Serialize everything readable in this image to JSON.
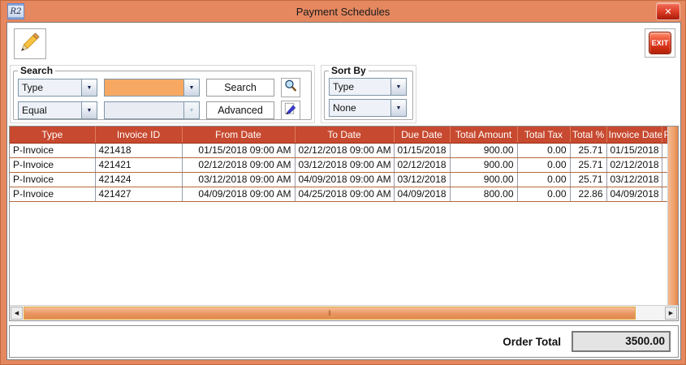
{
  "window": {
    "title": "Payment Schedules",
    "logo_text": "R2"
  },
  "icons": {
    "close": "✕",
    "combo_arrow": "▼",
    "scroll_left": "◀",
    "scroll_right": "▶",
    "thumb_grip": "‖"
  },
  "toolbar": {
    "exit_label": "EXIT"
  },
  "search_panel": {
    "legend": "Search",
    "field_combo_value": "Type",
    "search_value": "",
    "operator_combo_value": "Equal",
    "operator_value": "",
    "search_button_label": "Search",
    "advanced_button_label": "Advanced"
  },
  "sort_panel": {
    "legend": "Sort By",
    "primary_value": "Type",
    "secondary_value": "None"
  },
  "table": {
    "columns": [
      "Type",
      "Invoice ID",
      "From Date",
      "To Date",
      "Due Date",
      "Total Amount",
      "Total Tax",
      "Total %",
      "Invoice Date",
      "Pe"
    ],
    "rows": [
      [
        "P-Invoice",
        "421418",
        "01/15/2018 09:00 AM",
        "02/12/2018 09:00 AM",
        "01/15/2018",
        "900.00",
        "0.00",
        "25.71",
        "01/15/2018",
        ""
      ],
      [
        "P-Invoice",
        "421421",
        "02/12/2018 09:00 AM",
        "03/12/2018 09:00 AM",
        "02/12/2018",
        "900.00",
        "0.00",
        "25.71",
        "02/12/2018",
        ""
      ],
      [
        "P-Invoice",
        "421424",
        "03/12/2018 09:00 AM",
        "04/09/2018 09:00 AM",
        "03/12/2018",
        "900.00",
        "0.00",
        "25.71",
        "03/12/2018",
        ""
      ],
      [
        "P-Invoice",
        "421427",
        "04/09/2018 09:00 AM",
        "04/25/2018 09:00 AM",
        "04/09/2018",
        "800.00",
        "0.00",
        "22.86",
        "04/09/2018",
        ""
      ]
    ]
  },
  "footer": {
    "order_total_label": "Order Total",
    "order_total_value": "3500.00"
  },
  "colors": {
    "window_frame": "#E5875F",
    "table_header_bg": "#C7492F",
    "close_button": "#D93A23",
    "exit_button": "#E03A20",
    "highlight_field": "#F7A964",
    "scrollbar_thumb": "#EFA069",
    "row_divider": "#B5693C"
  }
}
